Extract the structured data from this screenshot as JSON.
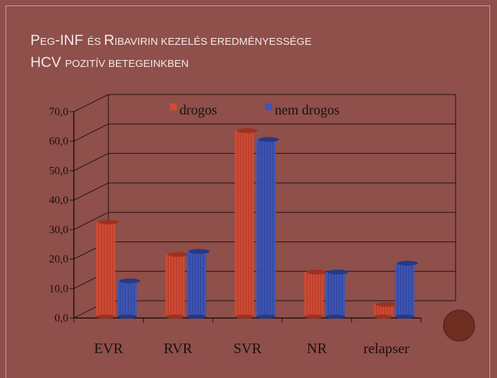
{
  "title": {
    "line1_parts": [
      {
        "text": "P",
        "size": "big"
      },
      {
        "text": "EG",
        "size": "small"
      },
      {
        "text": "-INF ",
        "size": "big"
      },
      {
        "text": "ÉS ",
        "size": "small"
      },
      {
        "text": "R",
        "size": "big"
      },
      {
        "text": "IBAVIRIN KEZELÉS EREDMÉNYESSÉGE",
        "size": "small"
      }
    ],
    "line2_parts": [
      {
        "text": "HCV ",
        "size": "big"
      },
      {
        "text": "POZITÍV BETEGEINKBEN",
        "size": "small"
      }
    ]
  },
  "colors": {
    "drogos": "#d24a33",
    "nem_drogos": "#3b55b8",
    "axis": "#1a1110",
    "grid": "#1a1110"
  },
  "chart_data": {
    "type": "bar",
    "categories": [
      "EVR",
      "RVR",
      "SVR",
      "NR",
      "relapser"
    ],
    "series": [
      {
        "name": "drogos",
        "values": [
          34.0,
          23.0,
          65.0,
          17.0,
          6.0
        ]
      },
      {
        "name": "nem drogos",
        "values": [
          14.0,
          24.0,
          62.0,
          17.0,
          20.0
        ]
      }
    ],
    "yticks": [
      "70,0",
      "60,0",
      "50,0",
      "40,0",
      "30,0",
      "20,0",
      "10,0",
      "0,0"
    ],
    "ylim": [
      0,
      70
    ],
    "legend_position": "top",
    "grid": true
  }
}
